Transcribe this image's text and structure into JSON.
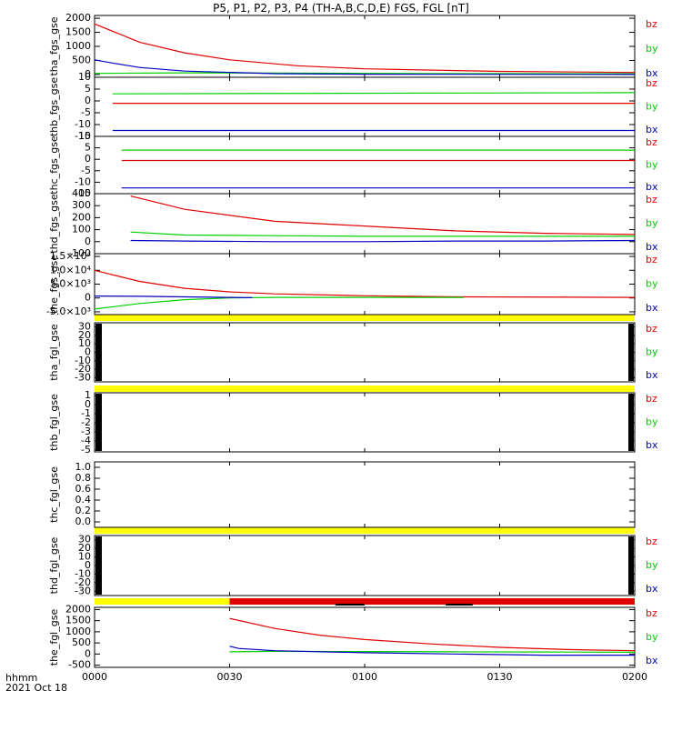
{
  "title": "P5, P1, P2, P3, P4 (TH-A,B,C,D,E) FGS, FGL [nT]",
  "footer": {
    "xunit": "hhmm",
    "date": "2021 Oct 18",
    "xticks": [
      "0000",
      "0030",
      "0100",
      "0130",
      "0200"
    ]
  },
  "colors": {
    "bz": "#e00000",
    "by": "#00d000",
    "bx": "#0000c0",
    "bar_yellow": "#ffff00",
    "bar_red": "#e00000",
    "bar_black": "#000000"
  },
  "chart_data": [
    {
      "type": "line",
      "panel": "tha_fgs_gse",
      "ylabel": "tha_fgs_gse",
      "ylim": [
        -100,
        2100
      ],
      "yticks": [
        "0",
        "500",
        "1000",
        "1500",
        "2000"
      ],
      "ytick_values": [
        0,
        500,
        1000,
        1500,
        2000
      ],
      "legend": [
        "bz",
        "by",
        "bx"
      ],
      "series": [
        {
          "name": "bz",
          "x_min": [
            0,
            10,
            20,
            30,
            45,
            60,
            90,
            120
          ],
          "values": [
            1800,
            1150,
            770,
            520,
            310,
            200,
            110,
            70
          ]
        },
        {
          "name": "by",
          "x_min": [
            0,
            20,
            40,
            60,
            90,
            120
          ],
          "values": [
            40,
            60,
            50,
            40,
            30,
            25
          ]
        },
        {
          "name": "bx",
          "x_min": [
            0,
            5,
            10,
            20,
            40,
            60,
            120
          ],
          "values": [
            520,
            380,
            250,
            120,
            30,
            10,
            0
          ]
        }
      ]
    },
    {
      "type": "line",
      "panel": "thb_fgs_gse",
      "ylabel": "thb_fgs_gse",
      "ylim": [
        -15,
        10
      ],
      "yticks": [
        "-15",
        "-10",
        "-5",
        "0",
        "5",
        "10"
      ],
      "ytick_values": [
        -15,
        -10,
        -5,
        0,
        5,
        10
      ],
      "legend": [
        "bz",
        "by",
        "bx"
      ],
      "series": [
        {
          "name": "bz",
          "x_min": [
            4,
            120
          ],
          "values": [
            -1,
            -1
          ]
        },
        {
          "name": "by",
          "x_min": [
            4,
            120
          ],
          "values": [
            3,
            3.5
          ]
        },
        {
          "name": "bx",
          "x_min": [
            4,
            120
          ],
          "values": [
            -12.5,
            -12.5
          ]
        }
      ]
    },
    {
      "type": "line",
      "panel": "thc_fgs_gse",
      "ylabel": "thc_fgs_gse",
      "ylim": [
        -15,
        10
      ],
      "yticks": [
        "-15",
        "-10",
        "-5",
        "0",
        "5",
        "10"
      ],
      "ytick_values": [
        -15,
        -10,
        -5,
        0,
        5,
        10
      ],
      "legend": [
        "bz",
        "by",
        "bx"
      ],
      "series": [
        {
          "name": "bz",
          "x_min": [
            6,
            120
          ],
          "values": [
            -0.5,
            -0.5
          ]
        },
        {
          "name": "by",
          "x_min": [
            6,
            120
          ],
          "values": [
            4,
            4
          ]
        },
        {
          "name": "bx",
          "x_min": [
            6,
            120
          ],
          "values": [
            -12.5,
            -12.5
          ]
        }
      ]
    },
    {
      "type": "line",
      "panel": "thd_fgs_gse",
      "ylabel": "thd_fgs_gse",
      "ylim": [
        -100,
        400
      ],
      "yticks": [
        "-100",
        "0",
        "100",
        "200",
        "300",
        "400"
      ],
      "ytick_values": [
        -100,
        0,
        100,
        200,
        300,
        400
      ],
      "legend": [
        "bz",
        "by",
        "bx"
      ],
      "series": [
        {
          "name": "bz",
          "x_min": [
            8,
            20,
            40,
            60,
            80,
            100,
            120
          ],
          "values": [
            380,
            270,
            170,
            130,
            90,
            70,
            60
          ]
        },
        {
          "name": "by",
          "x_min": [
            8,
            20,
            40,
            60,
            80,
            100,
            120
          ],
          "values": [
            80,
            55,
            50,
            45,
            45,
            45,
            45
          ]
        },
        {
          "name": "bx",
          "x_min": [
            8,
            20,
            40,
            60,
            80,
            100,
            120
          ],
          "values": [
            10,
            5,
            0,
            0,
            5,
            5,
            10
          ]
        }
      ]
    },
    {
      "type": "line",
      "panel": "the_fgs_gse",
      "ylabel": "the_fgs_gse",
      "ylim": [
        -6000,
        16000
      ],
      "yticks": [
        "-5.0×10³",
        "0",
        "5.0×10³",
        "1.0×10⁴",
        "1.5×10⁴"
      ],
      "ytick_values": [
        -5000,
        0,
        5000,
        10000,
        15000
      ],
      "legend": [
        "bz",
        "by",
        "bx"
      ],
      "series": [
        {
          "name": "bz",
          "x_min": [
            0,
            10,
            20,
            30,
            40,
            60,
            80,
            120
          ],
          "values": [
            10000,
            6000,
            3500,
            2200,
            1500,
            800,
            400,
            200
          ]
        },
        {
          "name": "by",
          "x_min": [
            0,
            10,
            20,
            30,
            40,
            60,
            82
          ],
          "values": [
            -4000,
            -2000,
            -600,
            0,
            200,
            200,
            200
          ]
        },
        {
          "name": "bx",
          "x_min": [
            0,
            10,
            20,
            30,
            35
          ],
          "values": [
            700,
            600,
            400,
            200,
            100
          ]
        }
      ]
    },
    {
      "type": "line",
      "panel": "tha_fgl_gse",
      "ylabel": "tha_fgl_gse",
      "ylim": [
        -35,
        35
      ],
      "yticks": [
        "-30",
        "-20",
        "-10",
        "0",
        "10",
        "20",
        "30"
      ],
      "ytick_values": [
        -30,
        -20,
        -10,
        0,
        10,
        20,
        30
      ],
      "legend": [
        "bz",
        "by",
        "bx"
      ],
      "series": []
    },
    {
      "type": "line",
      "panel": "thb_fgl_gse",
      "ylabel": "thb_fgl_gse",
      "ylim": [
        -5.2,
        1.3
      ],
      "yticks": [
        "-5",
        "-4",
        "-3",
        "-2",
        "-1",
        "0",
        "1"
      ],
      "ytick_values": [
        -5,
        -4,
        -3,
        -2,
        -1,
        0,
        1
      ],
      "legend": [
        "bz",
        "by",
        "bx"
      ],
      "series": []
    },
    {
      "type": "line",
      "panel": "thc_fgl_gse",
      "ylabel": "thc_fgl_gse",
      "ylim": [
        -0.1,
        1.1
      ],
      "yticks": [
        "0.0",
        "0.2",
        "0.4",
        "0.6",
        "0.8",
        "1.0"
      ],
      "ytick_values": [
        0,
        0.2,
        0.4,
        0.6,
        0.8,
        1.0
      ],
      "legend": [],
      "series": []
    },
    {
      "type": "line",
      "panel": "thd_fgl_gse",
      "ylabel": "thd_fgl_gse",
      "ylim": [
        -35,
        35
      ],
      "yticks": [
        "-30",
        "-20",
        "-10",
        "0",
        "10",
        "20",
        "30"
      ],
      "ytick_values": [
        -30,
        -20,
        -10,
        0,
        10,
        20,
        30
      ],
      "legend": [
        "bz",
        "by",
        "bx"
      ],
      "series": []
    },
    {
      "type": "line",
      "panel": "the_fgl_gse",
      "ylabel": "the_fgl_gse",
      "ylim": [
        -600,
        2100
      ],
      "yticks": [
        "-500",
        "0",
        "500",
        "1000",
        "1500",
        "2000"
      ],
      "ytick_values": [
        -500,
        0,
        500,
        1000,
        1500,
        2000
      ],
      "legend": [
        "bz",
        "by",
        "bx"
      ],
      "series": [
        {
          "name": "bz",
          "x_min": [
            30,
            40,
            50,
            60,
            75,
            90,
            105,
            120
          ],
          "values": [
            1600,
            1150,
            850,
            650,
            450,
            300,
            200,
            150
          ]
        },
        {
          "name": "by",
          "x_min": [
            30,
            40,
            60,
            80,
            100,
            120
          ],
          "values": [
            100,
            120,
            110,
            100,
            90,
            80
          ]
        },
        {
          "name": "bx",
          "x_min": [
            30,
            32,
            40,
            60,
            80,
            100,
            120
          ],
          "values": [
            350,
            250,
            150,
            60,
            0,
            -50,
            -50
          ]
        }
      ]
    }
  ]
}
